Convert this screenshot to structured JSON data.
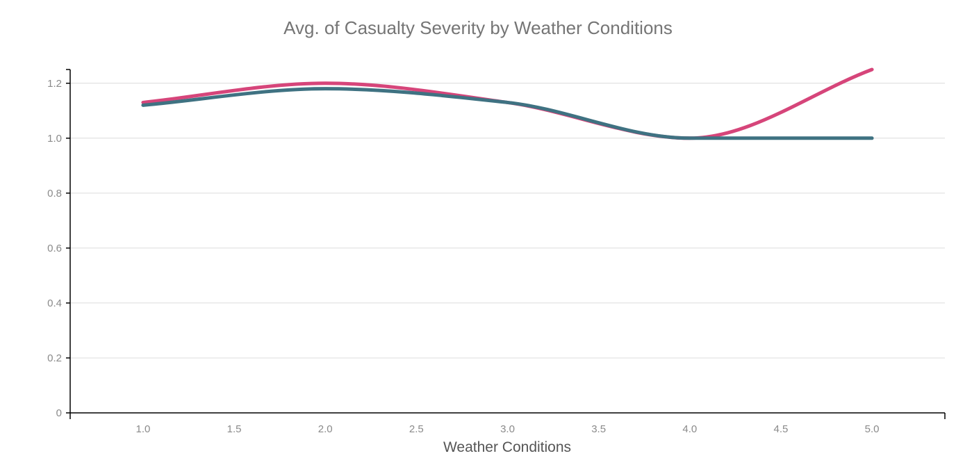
{
  "chart_data": {
    "type": "line",
    "title": "Avg. of Casualty Severity by Weather Conditions",
    "xlabel": "Weather Conditions",
    "ylabel": "",
    "xlim": [
      0.6,
      5.4
    ],
    "ylim": [
      0,
      1.25
    ],
    "x_ticks": [
      1.0,
      1.5,
      2.0,
      2.5,
      3.0,
      3.5,
      4.0,
      4.5,
      5.0
    ],
    "x_tick_labels": [
      "1.0",
      "1.5",
      "2.0",
      "2.5",
      "3.0",
      "3.5",
      "4.0",
      "4.5",
      "5.0"
    ],
    "y_ticks": [
      0,
      0.2,
      0.4,
      0.6,
      0.8,
      1.0,
      1.2
    ],
    "y_tick_labels": [
      "0",
      "0.2",
      "0.4",
      "0.6",
      "0.8",
      "1.0",
      "1.2"
    ],
    "grid": true,
    "legend": "none",
    "series": [
      {
        "color": "#d6457a",
        "x": [
          1,
          2,
          3,
          4,
          5
        ],
        "values": [
          1.13,
          1.2,
          1.13,
          1.0,
          1.25
        ]
      },
      {
        "color": "#3f7282",
        "x": [
          1,
          2,
          3,
          4,
          5
        ],
        "values": [
          1.12,
          1.18,
          1.13,
          1.0,
          1.0
        ]
      }
    ]
  }
}
